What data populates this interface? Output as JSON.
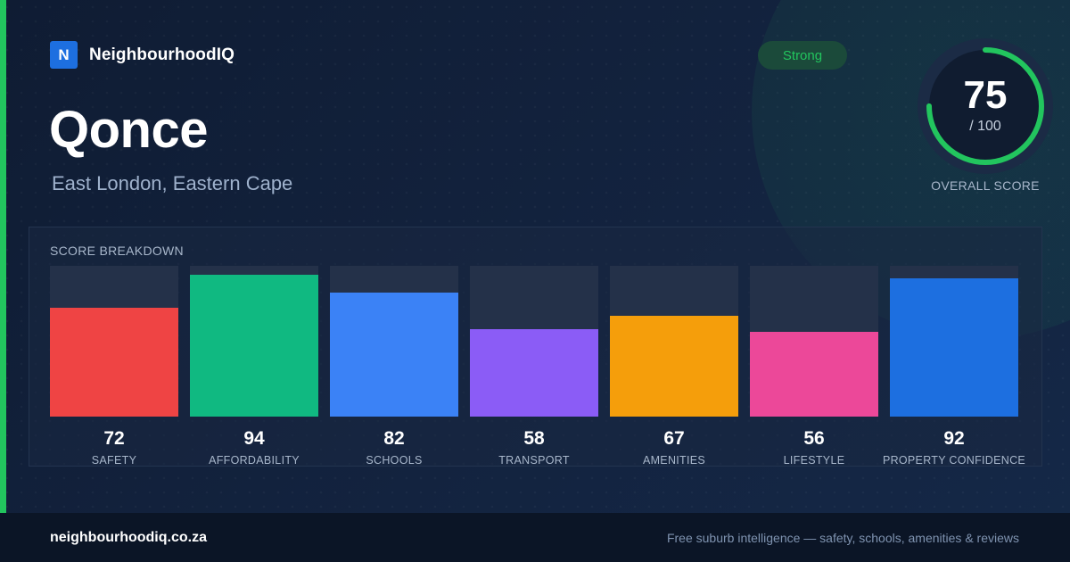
{
  "brand": {
    "logo_letter": "N",
    "name": "NeighbourhoodIQ",
    "logo_color": "#1d6fe0"
  },
  "suburb": {
    "name": "Qonce",
    "region": "East London, Eastern Cape"
  },
  "badge": {
    "label": "Strong",
    "color": "#22c55e"
  },
  "overall": {
    "score": "75",
    "max": "/ 100",
    "label": "OVERALL SCORE",
    "value": 75,
    "out_of": 100,
    "ring_color": "#22c55e"
  },
  "breakdown": {
    "title": "SCORE BREAKDOWN",
    "items": [
      {
        "label": "SAFETY",
        "score": "72",
        "value": 72,
        "color": "#ef4444"
      },
      {
        "label": "AFFORDABILITY",
        "score": "94",
        "value": 94,
        "color": "#10b981"
      },
      {
        "label": "SCHOOLS",
        "score": "82",
        "value": 82,
        "color": "#3b82f6"
      },
      {
        "label": "TRANSPORT",
        "score": "58",
        "value": 58,
        "color": "#8b5cf6"
      },
      {
        "label": "AMENITIES",
        "score": "67",
        "value": 67,
        "color": "#f59e0b"
      },
      {
        "label": "LIFESTYLE",
        "score": "56",
        "value": 56,
        "color": "#ec4899"
      },
      {
        "label": "PROPERTY CONFIDENCE",
        "score": "92",
        "value": 92,
        "color": "#1d6fe0"
      }
    ]
  },
  "footer": {
    "domain": "neighbourhoodiq.co.za",
    "tagline": "Free suburb intelligence — safety, schools, amenities & reviews"
  }
}
